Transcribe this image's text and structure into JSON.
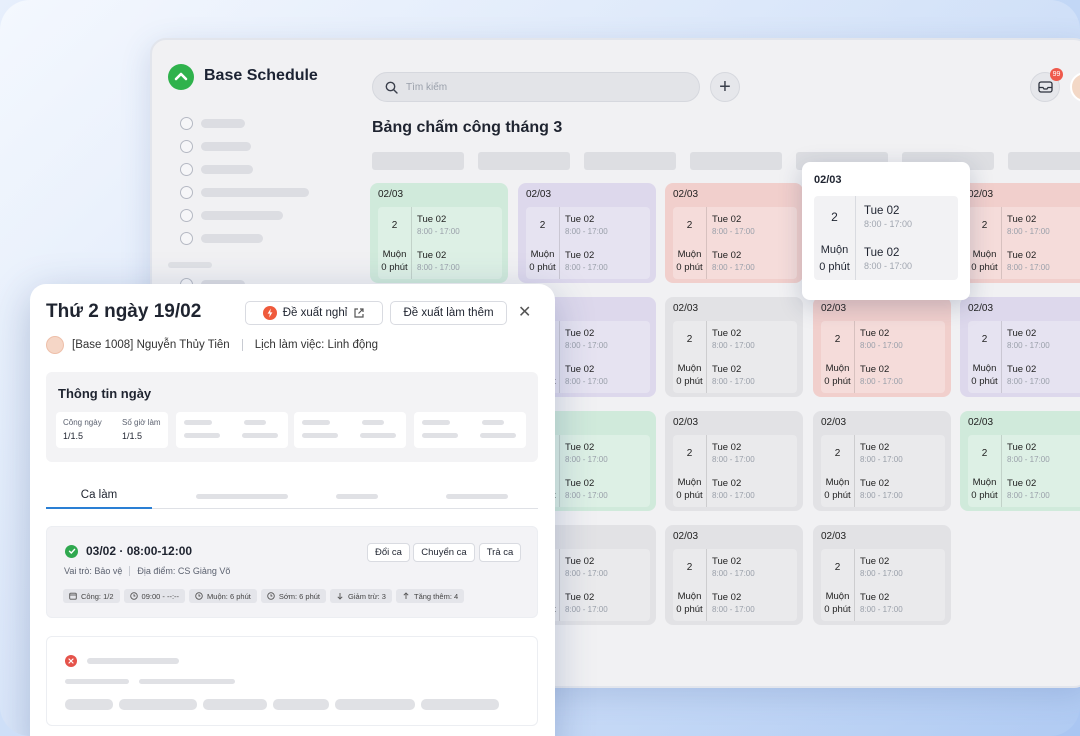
{
  "app": {
    "name": "Base Schedule"
  },
  "header": {
    "search_placeholder": "Tìm kiếm",
    "add_label": "+",
    "notif_count": "99"
  },
  "board": {
    "title": "Bảng chấm công tháng 3"
  },
  "cards": [
    {
      "date": "02/03",
      "num": "2",
      "day1": "Tue 02",
      "time1": "8:00 - 17:00",
      "status": "Muộn",
      "status_val": "0 phút",
      "day2": "Tue 02",
      "time2": "8:00 - 17:00",
      "color": "green"
    },
    {
      "date": "02/03",
      "num": "2",
      "day1": "Tue 02",
      "time1": "8:00 - 17:00",
      "status": "Muộn",
      "status_val": "0 phút",
      "day2": "Tue 02",
      "time2": "8:00 - 17:00",
      "color": "purple"
    },
    {
      "date": "02/03",
      "num": "2",
      "day1": "Tue 02",
      "time1": "8:00 - 17:00",
      "status": "Muộn",
      "status_val": "0 phút",
      "day2": "Tue 02",
      "time2": "8:00 - 17:00",
      "color": "red"
    },
    {
      "date": "02/03",
      "num": "2",
      "day1": "Tue 02",
      "time1": "8:00 - 17:00",
      "status": "Muộn",
      "status_val": "0 phút",
      "day2": "Tue 02",
      "time2": "8:00 - 17:00",
      "color": "red"
    },
    {
      "date": "02/03",
      "num": "2",
      "day1": "Tue 02",
      "time1": "8:00 - 17:00",
      "status": "Muộn",
      "status_val": "0 phút",
      "day2": "Tue 02",
      "time2": "8:00 - 17:00",
      "color": "red"
    },
    {
      "date": "02/03",
      "num": "2",
      "day1": "Tue 02",
      "time1": "8:00 - 17:00",
      "status": "Muộn",
      "status_val": "0 phút",
      "day2": "Tue 02",
      "time2": "8:00 - 17:00",
      "color": "purple"
    },
    {
      "date": "02/03",
      "num": "2",
      "day1": "Tue 02",
      "time1": "8:00 - 17:00",
      "status": "Muộn",
      "status_val": "0 phút",
      "day2": "Tue 02",
      "time2": "8:00 - 17:00",
      "color": "gray"
    },
    {
      "date": "02/03",
      "num": "2",
      "day1": "Tue 02",
      "time1": "8:00 - 17:00",
      "status": "Muộn",
      "status_val": "0 phút",
      "day2": "Tue 02",
      "time2": "8:00 - 17:00",
      "color": "red"
    },
    {
      "date": "02/03",
      "num": "2",
      "day1": "Tue 02",
      "time1": "8:00 - 17:00",
      "status": "Muộn",
      "status_val": "0 phút",
      "day2": "Tue 02",
      "time2": "8:00 - 17:00",
      "color": "purple"
    },
    {
      "date": "02/03",
      "num": "2",
      "day1": "Tue 02",
      "time1": "8:00 - 17:00",
      "status": "Muộn",
      "status_val": "0 phút",
      "day2": "Tue 02",
      "time2": "8:00 - 17:00",
      "color": "purple"
    },
    {
      "date": "02/03",
      "num": "2",
      "day1": "Tue 02",
      "time1": "8:00 - 17:00",
      "status": "Muộn",
      "status_val": "0 phút",
      "day2": "Tue 02",
      "time2": "8:00 - 17:00",
      "color": "green"
    },
    {
      "date": "02/03",
      "num": "2",
      "day1": "Tue 02",
      "time1": "8:00 - 17:00",
      "status": "Muộn",
      "status_val": "0 phút",
      "day2": "Tue 02",
      "time2": "8:00 - 17:00",
      "color": "gray"
    },
    {
      "date": "02/03",
      "num": "2",
      "day1": "Tue 02",
      "time1": "8:00 - 17:00",
      "status": "Muộn",
      "status_val": "0 phút",
      "day2": "Tue 02",
      "time2": "8:00 - 17:00",
      "color": "gray"
    },
    {
      "date": "02/03",
      "num": "2",
      "day1": "Tue 02",
      "time1": "8:00 - 17:00",
      "status": "Muộn",
      "status_val": "0 phút",
      "day2": "Tue 02",
      "time2": "8:00 - 17:00",
      "color": "green"
    },
    {
      "date": "02/03",
      "num": "2",
      "day1": "Tue 02",
      "time1": "8:00 - 17:00",
      "status": "Muộn",
      "status_val": "0 phút",
      "day2": "Tue 02",
      "time2": "8:00 - 17:00",
      "color": "gray"
    },
    {
      "date": "02/03",
      "num": "2",
      "day1": "Tue 02",
      "time1": "8:00 - 17:00",
      "status": "Muộn",
      "status_val": "0 phút",
      "day2": "Tue 02",
      "time2": "8:00 - 17:00",
      "color": "gray"
    },
    {
      "date": "02/03",
      "num": "2",
      "day1": "Tue 02",
      "time1": "8:00 - 17:00",
      "status": "Muộn",
      "status_val": "0 phút",
      "day2": "Tue 02",
      "time2": "8:00 - 17:00",
      "color": "gray"
    },
    {
      "date": "02/03",
      "num": "2",
      "day1": "Tue 02",
      "time1": "8:00 - 17:00",
      "status": "Muộn",
      "status_val": "0 phút",
      "day2": "Tue 02",
      "time2": "8:00 - 17:00",
      "color": "gray"
    }
  ],
  "popup": {
    "date": "02/03",
    "num": "2",
    "day1": "Tue 02",
    "time1": "8:00 - 17:00",
    "status": "Muộn",
    "status_val": "0 phút",
    "day2": "Tue 02",
    "time2": "8:00 - 17:00"
  },
  "panel": {
    "title": "Thứ 2 ngày 19/02",
    "btn_leave": "Đề xuất nghỉ",
    "btn_overtime": "Đề xuất làm thêm",
    "user": "[Base 1008] Nguyễn Thủy Tiên",
    "schedule": "Lịch làm việc: Linh động",
    "info_title": "Thông tin ngày",
    "stat1_label": "Công ngày",
    "stat1_value": "1/1.5",
    "stat2_label": "Số giờ làm",
    "stat2_value": "1/1.5",
    "tab1": "Ca làm",
    "shift_title": "03/02 · 08:00-12:00",
    "shift_role": "Vai trò: Bảo vệ",
    "shift_place": "Địa điểm: CS Giảng Võ",
    "btn_swap": "Đổi ca",
    "btn_transfer": "Chuyển ca",
    "btn_return": "Trả ca",
    "chips": [
      "Công: 1/2",
      "09:00 - --:--",
      "Muộn: 6 phút",
      "Sớm: 6 phút",
      "Giảm trừ: 3",
      "Tăng thêm: 4"
    ]
  },
  "colors": {
    "accent": "#2a7fd4",
    "brand": "#2fb24c",
    "green": "#d0eadb",
    "purple": "#ddd8ec",
    "red": "#f1cfcc",
    "gray": "#e2e2e5"
  }
}
